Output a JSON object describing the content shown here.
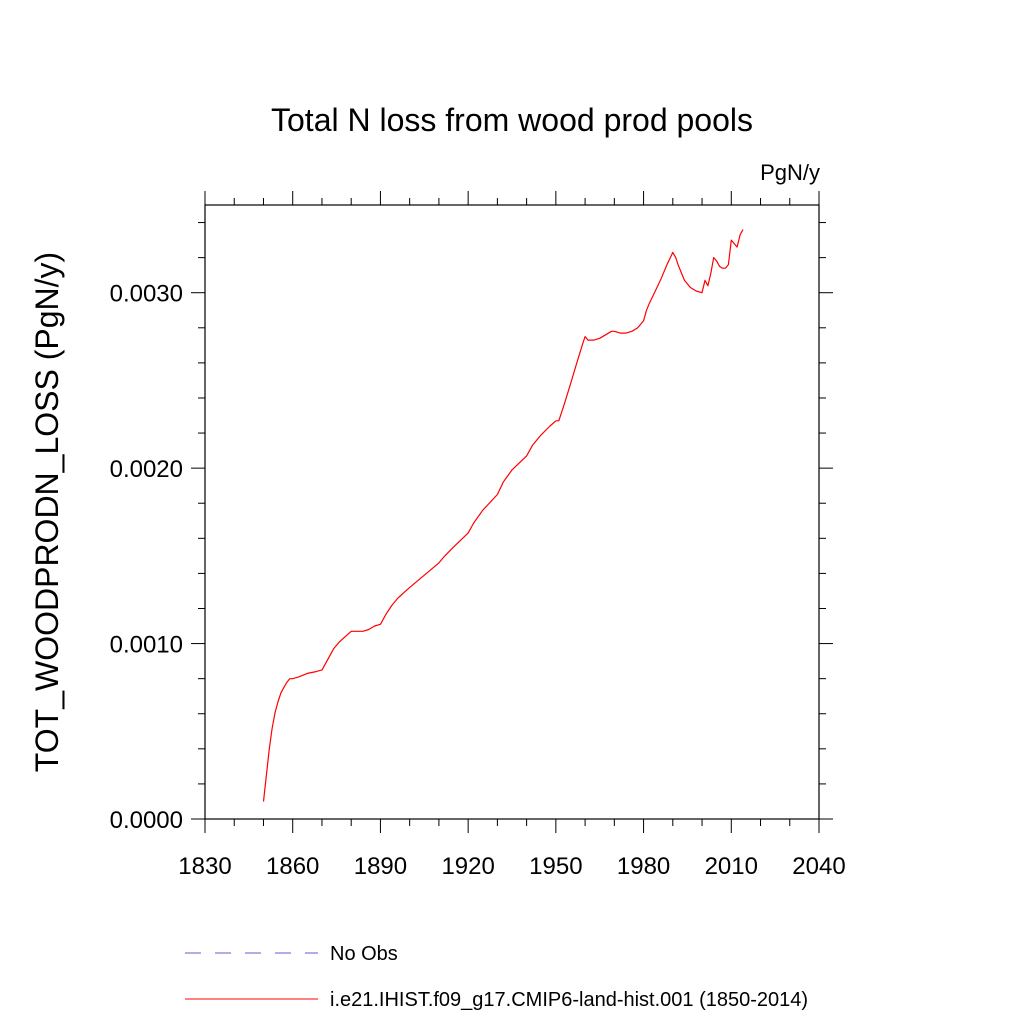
{
  "chart_data": {
    "type": "line",
    "title": "Total N loss from wood prod pools",
    "units_label": "PgN/y",
    "ylabel": "TOT_WOODPRODN_LOSS  (PgN/y)",
    "xlabel": "",
    "xlim": [
      1830,
      2040
    ],
    "ylim": [
      0.0,
      0.0035
    ],
    "x_ticks": [
      "1830",
      "1860",
      "1890",
      "1920",
      "1950",
      "1980",
      "2010",
      "2040"
    ],
    "y_ticks": [
      "0.0000",
      "0.0010",
      "0.0020",
      "0.0030"
    ],
    "grid": false,
    "legend": [
      {
        "name": "No Obs",
        "style": "dashed",
        "color": "#6a5acd"
      },
      {
        "name": "i.e21.IHIST.f09_g17.CMIP6-land-hist.001 (1850-2014)",
        "style": "solid",
        "color": "#ff0000"
      }
    ],
    "series": [
      {
        "color": "#ff0000",
        "x": [
          1850,
          1851,
          1852,
          1853,
          1854,
          1855,
          1856,
          1857,
          1858,
          1859,
          1860,
          1862,
          1865,
          1868,
          1870,
          1872,
          1874,
          1876,
          1878,
          1880,
          1882,
          1884,
          1886,
          1888,
          1890,
          1892,
          1894,
          1896,
          1898,
          1900,
          1905,
          1910,
          1912,
          1915,
          1920,
          1922,
          1925,
          1930,
          1932,
          1935,
          1940,
          1942,
          1945,
          1948,
          1950,
          1951,
          1953,
          1955,
          1957,
          1959,
          1960,
          1961,
          1963,
          1965,
          1967,
          1969,
          1970,
          1972,
          1974,
          1976,
          1978,
          1980,
          1981,
          1982,
          1984,
          1986,
          1988,
          1990,
          1991,
          1992,
          1994,
          1996,
          1998,
          2000,
          2001,
          2002,
          2003,
          2004,
          2005,
          2006,
          2007,
          2008,
          2009,
          2010,
          2011,
          2012,
          2013,
          2014
        ],
        "values": [
          0.0001,
          0.00025,
          0.0004,
          0.00052,
          0.00061,
          0.00067,
          0.00072,
          0.00075,
          0.00078,
          0.0008,
          0.0008,
          0.00081,
          0.00083,
          0.00084,
          0.00085,
          0.00091,
          0.00097,
          0.00101,
          0.00104,
          0.00107,
          0.00107,
          0.00107,
          0.00108,
          0.0011,
          0.00111,
          0.00117,
          0.00122,
          0.00126,
          0.00129,
          0.00132,
          0.00139,
          0.00146,
          0.0015,
          0.00155,
          0.00163,
          0.00169,
          0.00176,
          0.00185,
          0.00192,
          0.00199,
          0.00207,
          0.00213,
          0.00219,
          0.00224,
          0.00227,
          0.00227,
          0.00237,
          0.00248,
          0.00259,
          0.0027,
          0.00275,
          0.00273,
          0.00273,
          0.00274,
          0.00276,
          0.00278,
          0.00278,
          0.00277,
          0.00277,
          0.00278,
          0.0028,
          0.00284,
          0.0029,
          0.00294,
          0.00301,
          0.00308,
          0.00316,
          0.00323,
          0.0032,
          0.00315,
          0.00307,
          0.00303,
          0.00301,
          0.003,
          0.00307,
          0.00304,
          0.00311,
          0.0032,
          0.00318,
          0.00315,
          0.00314,
          0.00314,
          0.00316,
          0.0033,
          0.00328,
          0.00326,
          0.00333,
          0.00336
        ]
      }
    ]
  }
}
